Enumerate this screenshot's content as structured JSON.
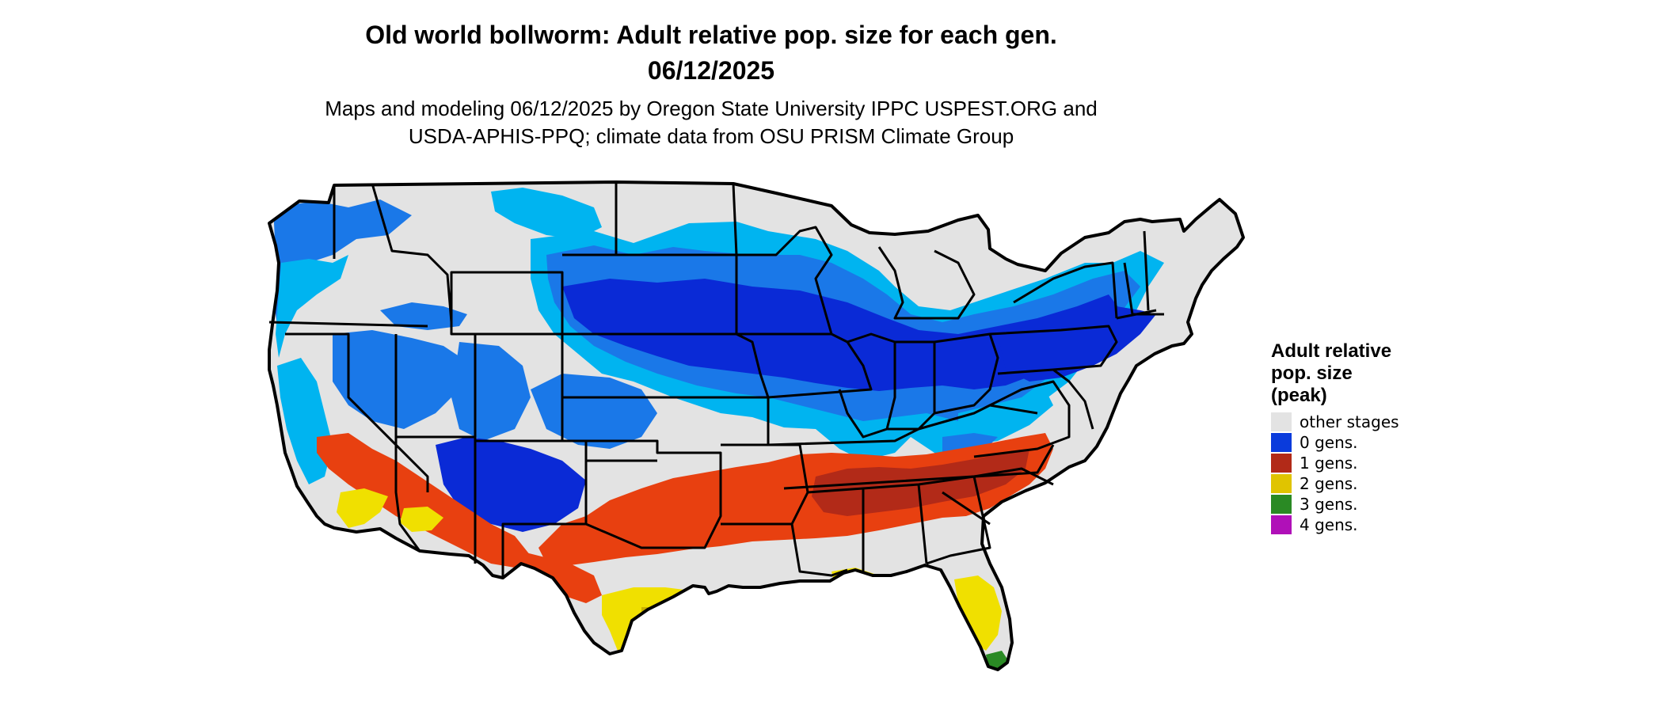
{
  "title": {
    "line1": "Old world bollworm: Adult relative pop. size for each gen.",
    "line2": "06/12/2025"
  },
  "subtitle": {
    "line1": "Maps and modeling 06/12/2025 by Oregon State University IPPC USPEST.ORG and",
    "line2": "USDA-APHIS-PPQ; climate data from OSU PRISM Climate Group"
  },
  "legend": {
    "title_line1": "Adult relative",
    "title_line2": "pop. size",
    "title_line3": "(peak)",
    "items": [
      {
        "label": "other stages",
        "color": "#e3e3e3"
      },
      {
        "label": "0 gens.",
        "color": "#0a3bdc"
      },
      {
        "label": "1 gens.",
        "color": "#b22a18"
      },
      {
        "label": "2 gens.",
        "color": "#e0c400"
      },
      {
        "label": "3 gens.",
        "color": "#2a8a24"
      },
      {
        "label": "4 gens.",
        "color": "#b010b8"
      }
    ]
  },
  "colors": {
    "land": "#e3e3e3",
    "blue_light": "#00b4f0",
    "blue_mid": "#1a78e8",
    "blue_dark": "#0a2ad6",
    "red": "#e84010",
    "red_dark": "#b22a18",
    "yellow": "#f0e000",
    "yellow_dark": "#c8b000",
    "green": "#2a8a24",
    "border": "#000000"
  }
}
